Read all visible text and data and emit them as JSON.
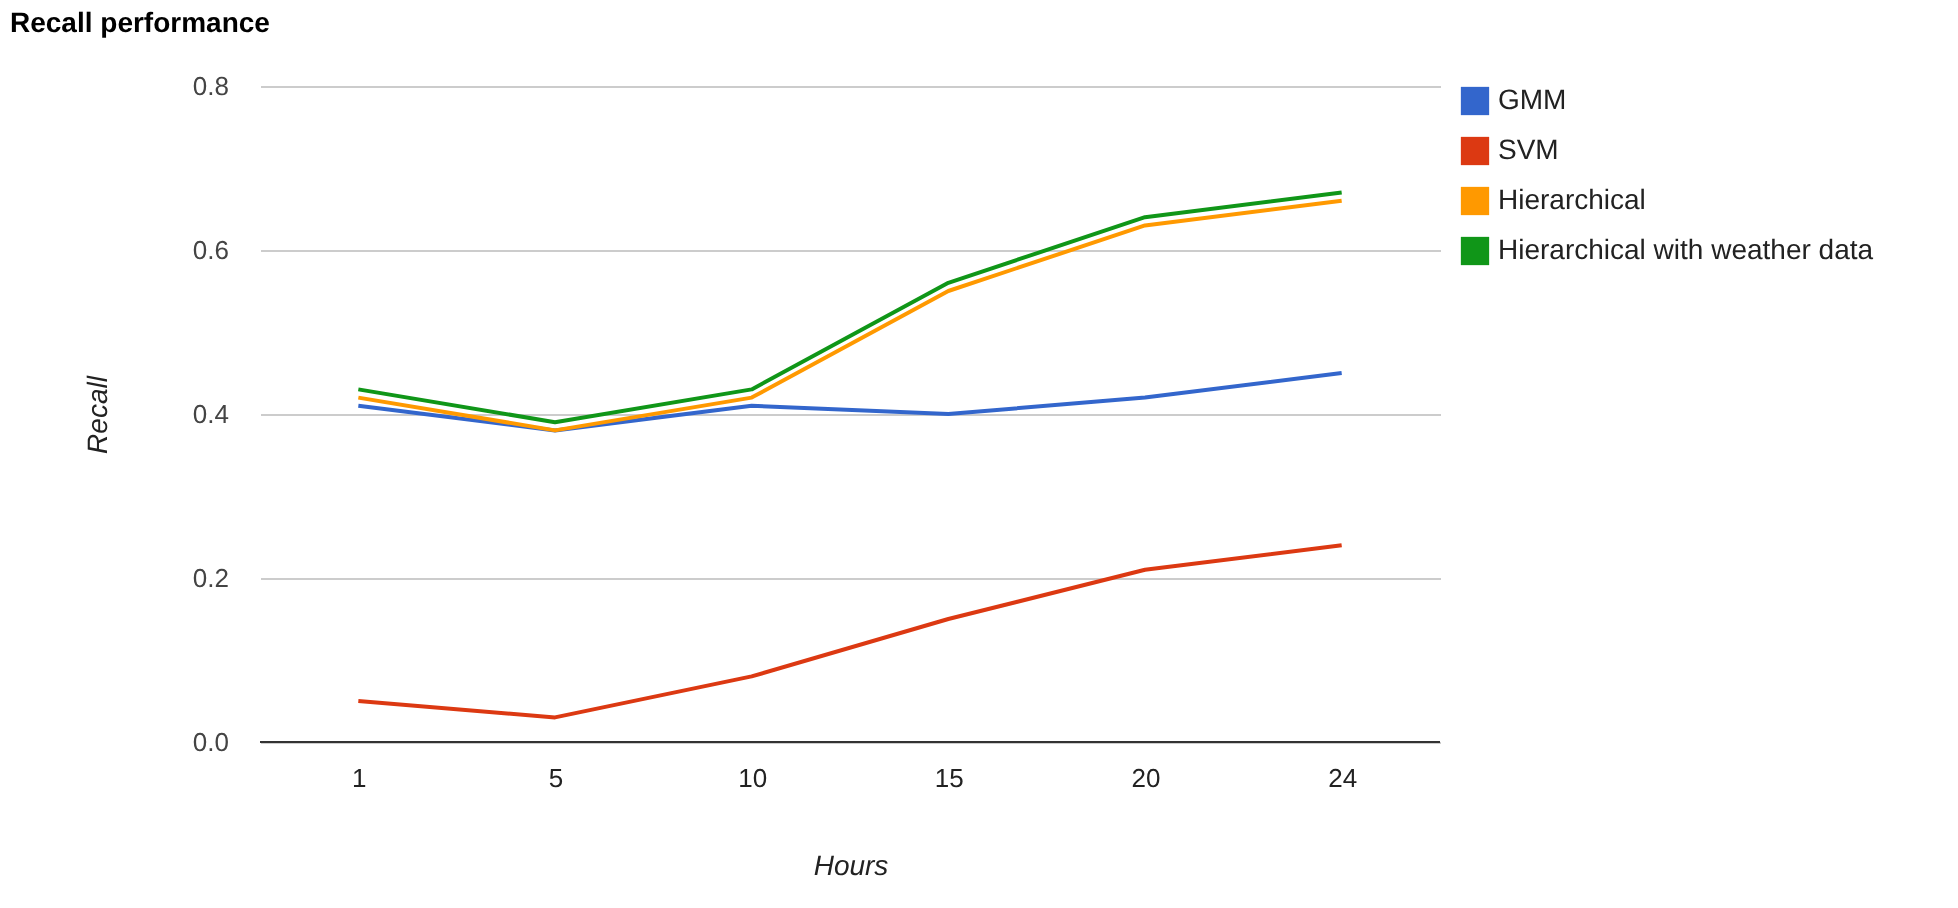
{
  "chart_data": {
    "type": "line",
    "title": "Recall performance",
    "xlabel": "Hours",
    "ylabel": "Recall",
    "categories": [
      "1",
      "5",
      "10",
      "15",
      "20",
      "24"
    ],
    "series": [
      {
        "name": "GMM",
        "color": "#3366cc",
        "values": [
          0.41,
          0.38,
          0.41,
          0.4,
          0.42,
          0.45
        ]
      },
      {
        "name": "SVM",
        "color": "#dc3912",
        "values": [
          0.05,
          0.03,
          0.08,
          0.15,
          0.21,
          0.24
        ]
      },
      {
        "name": "Hierarchical",
        "color": "#ff9900",
        "values": [
          0.42,
          0.38,
          0.42,
          0.55,
          0.63,
          0.66
        ]
      },
      {
        "name": "Hierarchical with weather data",
        "color": "#109618",
        "values": [
          0.43,
          0.39,
          0.43,
          0.56,
          0.64,
          0.67
        ]
      }
    ],
    "ylim": [
      0,
      0.8
    ],
    "yticks": [
      {
        "value": 0,
        "label": "0.0"
      },
      {
        "value": 0.2,
        "label": "0.2"
      },
      {
        "value": 0.4,
        "label": "0.4"
      },
      {
        "value": 0.6,
        "label": "0.6"
      },
      {
        "value": 0.8,
        "label": "0.8"
      }
    ],
    "grid": "y",
    "legend": "top right",
    "marker": "none",
    "line_style": "solid"
  }
}
